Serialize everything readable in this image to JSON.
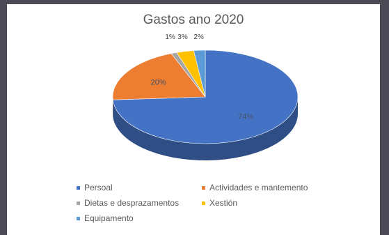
{
  "chart_data": {
    "type": "pie",
    "title": "Gastos ano 2020",
    "categories": [
      "Persoal",
      "Actividades e mantemento",
      "Dietas e desprazamentos",
      "Xestión",
      "Equipamento"
    ],
    "values": [
      74,
      20,
      1,
      3,
      2
    ],
    "data_labels": [
      "74%",
      "20%",
      "1%",
      "3%",
      "2%"
    ],
    "colors": [
      "#4472c4",
      "#ed7d31",
      "#a5a5a5",
      "#ffc000",
      "#5b9bd5"
    ],
    "style": "3d",
    "legend_position": "bottom"
  }
}
